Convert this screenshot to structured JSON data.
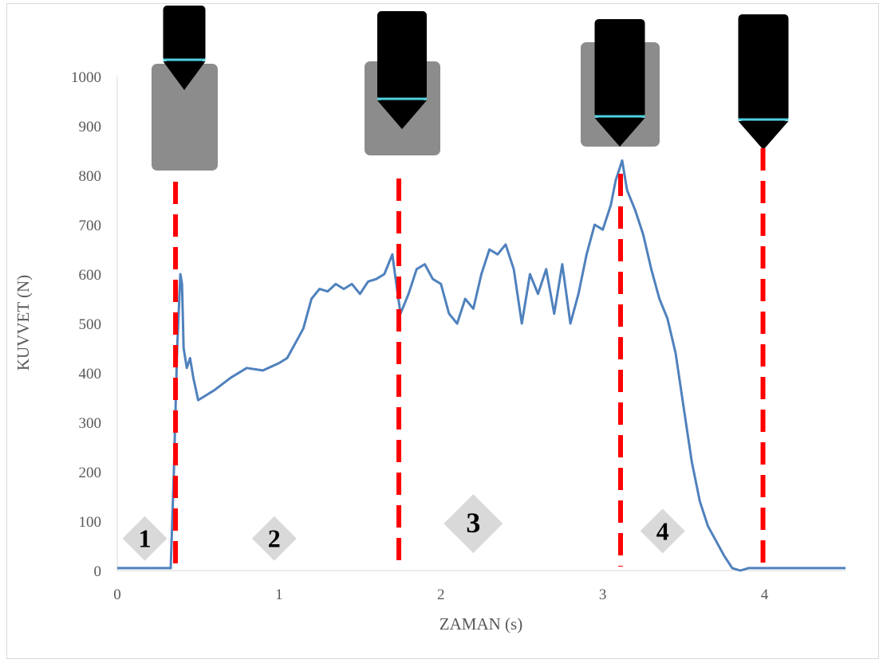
{
  "chart_data": {
    "type": "line",
    "title": "",
    "xlabel": "ZAMAN (s)",
    "ylabel": "KUVVET (N)",
    "xlim": [
      0,
      4.5
    ],
    "ylim": [
      0,
      1000
    ],
    "x_ticks": [
      "0",
      "1",
      "2",
      "3",
      "4"
    ],
    "y_ticks": [
      "0",
      "100",
      "200",
      "300",
      "400",
      "500",
      "600",
      "700",
      "800",
      "900",
      "1000"
    ],
    "grid": false,
    "legend": "none",
    "line_color": "#4f81bd",
    "series": [
      {
        "x": [
          0,
          0.1,
          0.2,
          0.3,
          0.33,
          0.35,
          0.37,
          0.39,
          0.4,
          0.41,
          0.43,
          0.45,
          0.47,
          0.5,
          0.55,
          0.6,
          0.7,
          0.8,
          0.9,
          1.0,
          1.05,
          1.1,
          1.15,
          1.2,
          1.25,
          1.3,
          1.35,
          1.4,
          1.45,
          1.5,
          1.55,
          1.6,
          1.65,
          1.7,
          1.72,
          1.75,
          1.8,
          1.85,
          1.9,
          1.95,
          2.0,
          2.05,
          2.1,
          2.15,
          2.2,
          2.25,
          2.3,
          2.35,
          2.4,
          2.45,
          2.5,
          2.55,
          2.6,
          2.65,
          2.7,
          2.75,
          2.8,
          2.85,
          2.9,
          2.95,
          3.0,
          3.05,
          3.08,
          3.1,
          3.12,
          3.15,
          3.2,
          3.25,
          3.3,
          3.35,
          3.4,
          3.45,
          3.5,
          3.55,
          3.6,
          3.65,
          3.7,
          3.75,
          3.78,
          3.8,
          3.85,
          3.9,
          4.0,
          4.2,
          4.4,
          4.5
        ],
        "y": [
          5,
          5,
          5,
          5,
          5,
          200,
          450,
          600,
          580,
          450,
          410,
          430,
          390,
          345,
          355,
          365,
          390,
          410,
          405,
          420,
          430,
          460,
          490,
          550,
          570,
          565,
          580,
          570,
          580,
          560,
          585,
          590,
          600,
          640,
          590,
          520,
          560,
          610,
          620,
          590,
          580,
          520,
          500,
          550,
          530,
          600,
          650,
          640,
          660,
          610,
          500,
          600,
          560,
          610,
          520,
          620,
          500,
          560,
          640,
          700,
          690,
          740,
          790,
          810,
          830,
          770,
          730,
          680,
          610,
          550,
          510,
          440,
          330,
          220,
          140,
          90,
          60,
          30,
          15,
          5,
          0,
          5,
          5,
          5,
          5,
          5
        ]
      }
    ],
    "phase_markers": [
      {
        "x": 0.36,
        "color": "#ff0000",
        "style": "dashed"
      },
      {
        "x": 1.74,
        "color": "#ff0000",
        "style": "dashed"
      },
      {
        "x": 3.11,
        "color": "#ff0000",
        "style": "dashed"
      },
      {
        "x": 3.99,
        "color": "#ff0000",
        "style": "dashed"
      }
    ],
    "phase_labels": [
      {
        "text": "1",
        "x": 0.17,
        "y": 65
      },
      {
        "text": "2",
        "x": 0.97,
        "y": 65
      },
      {
        "text": "3",
        "x": 2.2,
        "y": 95
      },
      {
        "text": "4",
        "x": 3.37,
        "y": 80
      }
    ]
  }
}
